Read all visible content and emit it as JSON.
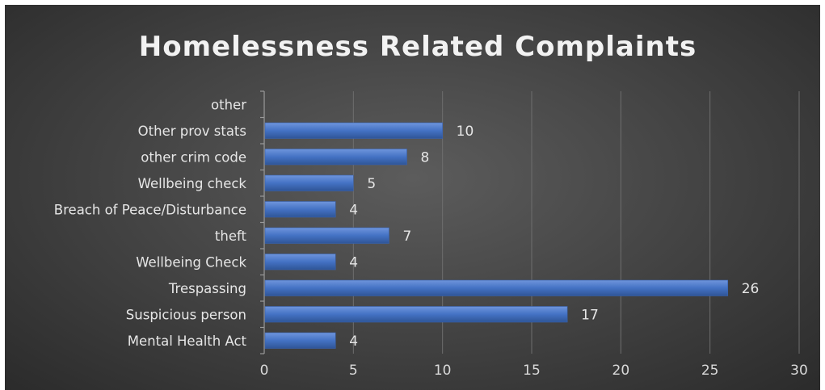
{
  "chart_data": {
    "type": "bar",
    "orientation": "horizontal",
    "title": "Homelessness Related Complaints",
    "categories": [
      "Mental Health Act",
      "Suspicious person",
      "Trespassing",
      "Wellbeing Check",
      "theft",
      "Breach of Peace/Disturbance",
      "Wellbeing check",
      "other crim code",
      "Other prov stats",
      "other"
    ],
    "values": [
      4,
      17,
      26,
      4,
      7,
      4,
      5,
      8,
      10,
      null
    ],
    "data_labels": [
      "4",
      "17",
      "26",
      "4",
      "7",
      "4",
      "5",
      "8",
      "10",
      ""
    ],
    "xlim": [
      0,
      30
    ],
    "x_ticks": [
      0,
      5,
      10,
      15,
      20,
      25,
      30
    ],
    "x_tick_labels": [
      "0",
      "5",
      "10",
      "15",
      "20",
      "25",
      "30"
    ],
    "grid": true,
    "legend": "none",
    "colors": {
      "bar": "#4472c4",
      "gridline": "#6e6e6e",
      "text": "#e6e6e6"
    }
  }
}
